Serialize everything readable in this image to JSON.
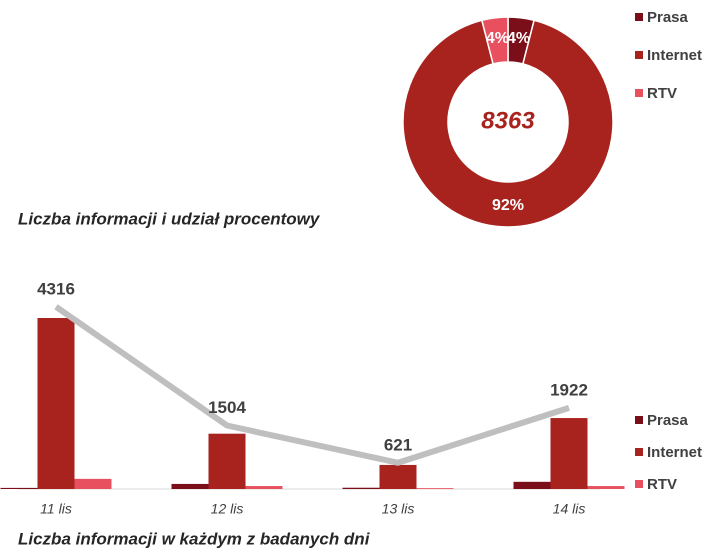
{
  "chart_data": [
    {
      "type": "pie",
      "title": "Liczba informacji  i udział  procentowy",
      "total": 8363,
      "categories": [
        "Prasa",
        "Internet",
        "RTV"
      ],
      "values": [
        4,
        92,
        4
      ],
      "value_labels": [
        "4%",
        "92%",
        "4%"
      ],
      "colors": [
        "#7b0f19",
        "#a8221e",
        "#e8505f"
      ]
    },
    {
      "type": "bar",
      "title": "Liczba informacji  w każdym  z badanych  dni",
      "categories": [
        "11 lis",
        "12 lis",
        "13 lis",
        "14 lis"
      ],
      "series": [
        {
          "name": "Prasa",
          "color": "#7b0f19",
          "values": [
            26,
            120,
            30,
            170
          ]
        },
        {
          "name": "Internet",
          "color": "#a8221e",
          "values": [
            4050,
            1310,
            570,
            1680
          ]
        },
        {
          "name": "RTV",
          "color": "#e8505f",
          "values": [
            240,
            70,
            20,
            70
          ]
        }
      ],
      "line": {
        "color": "#bfbfbf",
        "values": [
          4316,
          1504,
          621,
          1922
        ]
      },
      "ylim": [
        0,
        4500
      ]
    }
  ]
}
